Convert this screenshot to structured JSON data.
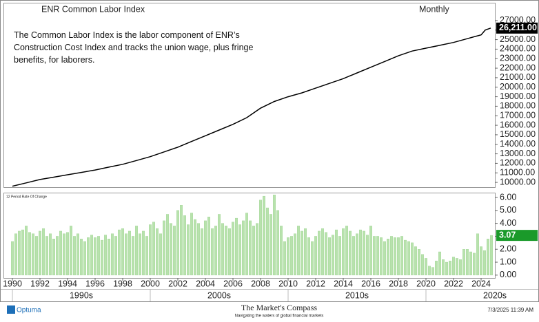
{
  "chart_data": [
    {
      "type": "line",
      "title": "ENR Common Labor Index",
      "subtitle": "Monthly",
      "annotation": "The Common Labor Index is the labor component of ENR’s Construction Cost Index and tracks the union wage, plus fringe benefits, for laborers.",
      "color": "#000000",
      "x": [
        1990,
        1991,
        1992,
        1993,
        1994,
        1995,
        1996,
        1997,
        1998,
        1999,
        2000,
        2001,
        2002,
        2003,
        2004,
        2005,
        2006,
        2007,
        2008,
        2009,
        2010,
        2011,
        2012,
        2013,
        2014,
        2015,
        2016,
        2017,
        2018,
        2019,
        2020,
        2021,
        2022,
        2023,
        2023.5,
        2024,
        2024.3,
        2024.7
      ],
      "values": [
        9600,
        9950,
        10300,
        10550,
        10800,
        11050,
        11300,
        11600,
        11900,
        12300,
        12700,
        13200,
        13700,
        14300,
        14900,
        15500,
        16100,
        16800,
        17800,
        18500,
        19000,
        19400,
        19900,
        20400,
        20900,
        21500,
        22100,
        22700,
        23300,
        23800,
        24100,
        24400,
        24700,
        25100,
        25300,
        25500,
        26000,
        26211
      ],
      "last_label": {
        "value": 26211,
        "label": "26,211.00"
      },
      "xlim": [
        1989.4,
        2025.0
      ],
      "ylim": [
        9500,
        28800
      ],
      "yticks": [
        {
          "value": 10000,
          "label": "10000.00"
        },
        {
          "value": 11000,
          "label": "11000.00"
        },
        {
          "value": 12000,
          "label": "12000.00"
        },
        {
          "value": 13000,
          "label": "13000.00"
        },
        {
          "value": 14000,
          "label": "14000.00"
        },
        {
          "value": 15000,
          "label": "15000.00"
        },
        {
          "value": 16000,
          "label": "16000.00"
        },
        {
          "value": 17000,
          "label": "17000.00"
        },
        {
          "value": 18000,
          "label": "18000.00"
        },
        {
          "value": 19000,
          "label": "19000.00"
        },
        {
          "value": 20000,
          "label": "20000.00"
        },
        {
          "value": 21000,
          "label": "21000.00"
        },
        {
          "value": 22000,
          "label": "22000.00"
        },
        {
          "value": 23000,
          "label": "23000.00"
        },
        {
          "value": 24000,
          "label": "24000.00"
        },
        {
          "value": 25000,
          "label": "25000.00"
        },
        {
          "value": 26000,
          "label": "26000.00"
        },
        {
          "value": 27000,
          "label": "27000.00"
        }
      ]
    },
    {
      "type": "bar",
      "title": "12 Period Rate Of Change",
      "color": "#b8e2ad",
      "x": [
        1990,
        1990.25,
        1990.5,
        1990.75,
        1991,
        1991.25,
        1991.5,
        1991.75,
        1992,
        1992.25,
        1992.5,
        1992.75,
        1993,
        1993.25,
        1993.5,
        1993.75,
        1994,
        1994.25,
        1994.5,
        1994.75,
        1995,
        1995.25,
        1995.5,
        1995.75,
        1996,
        1996.25,
        1996.5,
        1996.75,
        1997,
        1997.25,
        1997.5,
        1997.75,
        1998,
        1998.25,
        1998.5,
        1998.75,
        1999,
        1999.25,
        1999.5,
        1999.75,
        2000,
        2000.25,
        2000.5,
        2000.75,
        2001,
        2001.25,
        2001.5,
        2001.75,
        2002,
        2002.25,
        2002.5,
        2002.75,
        2003,
        2003.25,
        2003.5,
        2003.75,
        2004,
        2004.25,
        2004.5,
        2004.75,
        2005,
        2005.25,
        2005.5,
        2005.75,
        2006,
        2006.25,
        2006.5,
        2006.75,
        2007,
        2007.25,
        2007.5,
        2007.75,
        2008,
        2008.25,
        2008.5,
        2008.75,
        2009,
        2009.25,
        2009.5,
        2009.75,
        2010,
        2010.25,
        2010.5,
        2010.75,
        2011,
        2011.25,
        2011.5,
        2011.75,
        2012,
        2012.25,
        2012.5,
        2012.75,
        2013,
        2013.25,
        2013.5,
        2013.75,
        2014,
        2014.25,
        2014.5,
        2014.75,
        2015,
        2015.25,
        2015.5,
        2015.75,
        2016,
        2016.25,
        2016.5,
        2016.75,
        2017,
        2017.25,
        2017.5,
        2017.75,
        2018,
        2018.25,
        2018.5,
        2018.75,
        2019,
        2019.25,
        2019.5,
        2019.75,
        2020,
        2020.25,
        2020.5,
        2020.75,
        2021,
        2021.25,
        2021.5,
        2021.75,
        2022,
        2022.25,
        2022.5,
        2022.75,
        2023,
        2023.25,
        2023.5,
        2023.75,
        2024,
        2024.25,
        2024.5,
        2024.75
      ],
      "values": [
        2.6,
        3.2,
        3.4,
        3.5,
        3.8,
        3.3,
        3.2,
        3.0,
        3.4,
        3.6,
        3.0,
        3.2,
        2.8,
        3.0,
        3.4,
        3.2,
        3.3,
        3.8,
        3.0,
        3.2,
        2.8,
        2.6,
        2.9,
        3.1,
        2.9,
        3.0,
        2.7,
        3.1,
        2.8,
        3.2,
        3.0,
        3.5,
        3.6,
        3.2,
        3.4,
        3.0,
        3.8,
        3.2,
        3.4,
        3.0,
        3.9,
        4.1,
        3.6,
        3.2,
        4.2,
        4.7,
        4.0,
        3.8,
        5.0,
        5.4,
        4.6,
        3.9,
        4.8,
        4.3,
        4.0,
        3.6,
        4.2,
        4.5,
        3.6,
        3.8,
        4.7,
        4.0,
        3.8,
        3.6,
        4.1,
        4.4,
        3.9,
        4.2,
        4.8,
        4.2,
        3.8,
        4.0,
        5.8,
        6.1,
        5.2,
        4.7,
        6.2,
        5.0,
        3.8,
        2.6,
        2.9,
        3.0,
        3.2,
        3.8,
        3.4,
        3.6,
        2.9,
        2.6,
        3.0,
        3.4,
        3.6,
        3.3,
        2.9,
        3.1,
        3.5,
        3.0,
        3.6,
        3.8,
        3.4,
        3.0,
        3.2,
        3.5,
        3.4,
        3.1,
        3.8,
        3.0,
        3.0,
        2.9,
        2.6,
        2.8,
        3.0,
        2.9,
        2.9,
        3.0,
        2.7,
        2.6,
        2.5,
        2.2,
        2.0,
        1.6,
        1.3,
        0.7,
        0.6,
        1.1,
        1.8,
        1.2,
        1.0,
        1.1,
        1.4,
        1.3,
        1.2,
        2.0,
        2.0,
        1.8,
        1.7,
        3.2,
        2.2,
        1.9,
        2.8,
        3.07
      ],
      "last_label": 3.07,
      "xlim": [
        1989.4,
        2025.0
      ],
      "ylim": [
        -0.22,
        6.32
      ],
      "yticks": [
        {
          "value": 0,
          "label": "0.00"
        },
        {
          "value": 1,
          "label": "1.00"
        },
        {
          "value": 2,
          "label": "2.00"
        },
        {
          "value": 3,
          "label": "3.00"
        },
        {
          "value": 4,
          "label": "4.00"
        },
        {
          "value": 5,
          "label": "5.00"
        },
        {
          "value": 6,
          "label": "6.00"
        }
      ],
      "xticks": [
        1990,
        1992,
        1994,
        1996,
        1998,
        2000,
        2002,
        2004,
        2006,
        2008,
        2010,
        2012,
        2014,
        2016,
        2018,
        2020,
        2022,
        2024
      ],
      "decades": [
        {
          "value": 1990,
          "label": "1990s"
        },
        {
          "value": 2000,
          "label": "2000s"
        },
        {
          "value": 2010,
          "label": "2010s"
        },
        {
          "value": 2020,
          "label": "2020s"
        }
      ]
    }
  ],
  "footer": {
    "brand": "Optuma",
    "site": "The Market's Compass",
    "tagline": "Navigating the waters of global financial markets",
    "timestamp": "7/3/2025 11:39 AM"
  }
}
